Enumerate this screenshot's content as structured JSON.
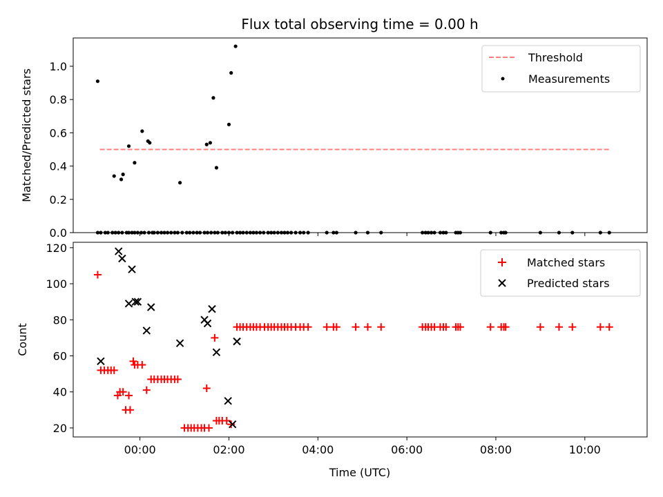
{
  "chart_data": [
    {
      "type": "scatter",
      "title": "Flux total observing time = 0.00 h",
      "xlabel": "",
      "ylabel": "Matched/Predicted stars",
      "ylim": [
        0,
        1.17
      ],
      "yticks": [
        0.0,
        0.2,
        0.4,
        0.6,
        0.8,
        1.0
      ],
      "ytick_labels": [
        "0.0",
        "0.2",
        "0.4",
        "0.6",
        "0.8",
        "1.0"
      ],
      "xlim": [
        -1.5,
        11.4
      ],
      "xticks": [
        0,
        2,
        4,
        6,
        8,
        10
      ],
      "grid": false,
      "legend": "top-right",
      "threshold": {
        "name": "Threshold",
        "value": 0.5,
        "x": [
          -0.9,
          10.55
        ],
        "color": "#ff7f7f"
      },
      "series": [
        {
          "name": "Measurements",
          "color": "#000000",
          "marker": "dot",
          "x": [
            -0.95,
            -0.88,
            -0.78,
            -0.72,
            -0.62,
            -0.55,
            -0.48,
            -0.4,
            -0.3,
            -0.25,
            -0.18,
            -0.12,
            -0.05,
            0.03,
            0.1,
            0.2,
            0.28,
            0.32,
            0.4,
            0.48,
            0.55,
            0.62,
            0.7,
            0.78,
            0.85,
            0.95,
            1.05,
            1.12,
            1.2,
            1.28,
            1.35,
            1.45,
            1.52,
            1.6,
            1.68,
            1.75,
            1.85,
            1.92,
            2.0,
            2.08,
            2.18,
            2.25,
            2.32,
            2.4,
            2.48,
            2.55,
            2.62,
            2.7,
            2.78,
            2.88,
            2.95,
            3.02,
            3.1,
            3.18,
            3.25,
            3.32,
            3.4,
            3.5,
            3.6,
            3.68,
            3.78,
            4.2,
            4.35,
            4.42,
            4.85,
            5.12,
            5.42,
            6.35,
            6.42,
            6.48,
            6.55,
            6.62,
            6.75,
            6.82,
            6.88,
            7.1,
            7.15,
            7.2,
            7.88,
            8.12,
            8.18,
            8.22,
            9.0,
            9.42,
            9.72,
            10.35,
            10.55,
            -0.42,
            -0.38,
            -0.25,
            -0.12,
            0.05,
            0.18,
            0.22,
            0.9,
            1.5,
            1.58,
            1.65,
            1.72,
            2.0,
            2.05,
            2.15,
            -0.58,
            -0.95
          ],
          "y": [
            0,
            0,
            0,
            0,
            0,
            0,
            0,
            0,
            0,
            0,
            0,
            0,
            0,
            0,
            0,
            0,
            0,
            0,
            0,
            0,
            0,
            0,
            0,
            0,
            0,
            0,
            0,
            0,
            0,
            0,
            0,
            0,
            0,
            0,
            0,
            0,
            0,
            0,
            0,
            0,
            0,
            0,
            0,
            0,
            0,
            0,
            0,
            0,
            0,
            0,
            0,
            0,
            0,
            0,
            0,
            0,
            0,
            0,
            0,
            0,
            0,
            0,
            0,
            0,
            0,
            0,
            0,
            0,
            0,
            0,
            0,
            0,
            0,
            0,
            0,
            0,
            0,
            0,
            0,
            0,
            0,
            0,
            0,
            0,
            0,
            0,
            0,
            0.32,
            0.35,
            0.52,
            0.42,
            0.61,
            0.55,
            0.54,
            0.3,
            0.53,
            0.54,
            0.81,
            0.39,
            0.65,
            0.96,
            1.12,
            0.34,
            0.91
          ]
        }
      ]
    },
    {
      "type": "scatter",
      "title": "",
      "xlabel": "Time (UTC)",
      "ylabel": "Count",
      "ylim": [
        15,
        123
      ],
      "yticks": [
        20,
        40,
        60,
        80,
        100,
        120
      ],
      "ytick_labels": [
        "20",
        "40",
        "60",
        "80",
        "100",
        "120"
      ],
      "xlim": [
        -1.5,
        11.4
      ],
      "xticks": [
        0,
        2,
        4,
        6,
        8,
        10
      ],
      "xtick_labels": [
        "00:00",
        "02:00",
        "04:00",
        "06:00",
        "08:00",
        "10:00"
      ],
      "grid": false,
      "legend": "top-right",
      "series": [
        {
          "name": "Matched stars",
          "color": "#ff0000",
          "marker": "plus",
          "x": [
            -0.95,
            -0.88,
            -0.8,
            -0.72,
            -0.65,
            -0.58,
            -0.5,
            -0.45,
            -0.38,
            -0.32,
            -0.22,
            -0.15,
            -0.25,
            -0.12,
            -0.05,
            0.05,
            0.15,
            0.25,
            0.32,
            0.4,
            0.48,
            0.55,
            0.62,
            0.7,
            0.78,
            0.85,
            1.0,
            1.08,
            1.15,
            1.22,
            1.3,
            1.38,
            1.45,
            1.55,
            1.5,
            1.72,
            1.78,
            1.85,
            1.95,
            1.68,
            2.18,
            2.25,
            2.32,
            2.4,
            2.48,
            2.55,
            2.62,
            2.7,
            2.8,
            2.88,
            2.95,
            3.02,
            3.1,
            3.18,
            3.25,
            3.32,
            3.4,
            3.5,
            3.6,
            3.68,
            3.78,
            4.2,
            4.35,
            4.42,
            4.85,
            5.12,
            5.42,
            6.35,
            6.42,
            6.48,
            6.55,
            6.62,
            6.75,
            6.82,
            6.88,
            7.1,
            7.15,
            7.2,
            7.88,
            8.12,
            8.18,
            8.22,
            9.0,
            9.42,
            9.72,
            10.35,
            10.55,
            2.05
          ],
          "y": [
            105,
            52,
            52,
            52,
            52,
            52,
            38,
            40,
            40,
            30,
            30,
            57,
            38,
            55,
            55,
            55,
            41,
            47,
            47,
            47,
            47,
            47,
            47,
            47,
            47,
            47,
            20,
            20,
            20,
            20,
            20,
            20,
            20,
            20,
            42,
            24,
            24,
            24,
            24,
            70,
            76,
            76,
            76,
            76,
            76,
            76,
            76,
            76,
            76,
            76,
            76,
            76,
            76,
            76,
            76,
            76,
            76,
            76,
            76,
            76,
            76,
            76,
            76,
            76,
            76,
            76,
            76,
            76,
            76,
            76,
            76,
            76,
            76,
            76,
            76,
            76,
            76,
            76,
            76,
            76,
            76,
            76,
            76,
            76,
            76,
            76,
            76,
            22
          ]
        },
        {
          "name": "Predicted stars",
          "color": "#000000",
          "marker": "x",
          "x": [
            -0.88,
            -0.48,
            -0.4,
            -0.25,
            -0.18,
            -0.1,
            -0.05,
            0.15,
            0.25,
            0.9,
            1.45,
            1.52,
            1.62,
            1.72,
            1.98,
            2.08,
            2.18
          ],
          "y": [
            57,
            118,
            114,
            89,
            108,
            90,
            90,
            74,
            87,
            67,
            80,
            78,
            86,
            62,
            35,
            22,
            68
          ]
        }
      ]
    }
  ]
}
